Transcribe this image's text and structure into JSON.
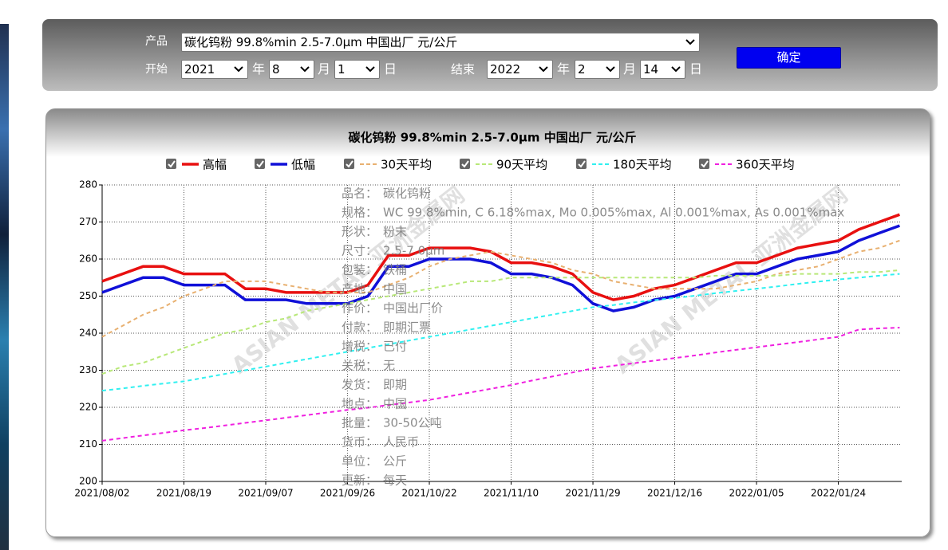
{
  "form": {
    "product_label": "产品",
    "product_value": "碳化钨粉 99.8%min 2.5-7.0μm 中国出厂 元/公斤",
    "start_label": "开始",
    "start_year": "2021",
    "start_month": "8",
    "start_day": "1",
    "end_label": "结束",
    "end_year": "2022",
    "end_month": "2",
    "end_day": "14",
    "year_unit": "年",
    "month_unit": "月",
    "day_unit": "日",
    "submit": "确定"
  },
  "chart_data": {
    "type": "line",
    "title": "碳化钨粉 99.8%min 2.5-7.0μm 中国出厂 元/公斤",
    "categories": [
      "2021/08/02",
      null,
      null,
      null,
      "2021/08/19",
      null,
      null,
      null,
      "2021/09/07",
      null,
      null,
      null,
      "2021/09/26",
      null,
      null,
      null,
      "2021/10/22",
      null,
      null,
      null,
      "2021/11/10",
      null,
      null,
      null,
      "2021/11/29",
      null,
      null,
      null,
      "2021/12/16",
      null,
      null,
      null,
      "2022/01/05",
      null,
      null,
      null,
      "2022/01/24",
      null,
      null,
      null
    ],
    "ylim": [
      200,
      280
    ],
    "yticks": [
      200,
      210,
      220,
      230,
      240,
      250,
      260,
      270,
      280
    ],
    "grid": true,
    "series": [
      {
        "name": "高幅",
        "color": "#e81010",
        "style": "solid",
        "values": [
          254,
          256,
          258,
          258,
          256,
          256,
          256,
          252,
          252,
          251,
          251,
          251,
          251,
          253,
          261,
          261,
          263,
          263,
          263,
          262,
          259,
          259,
          258,
          256,
          251,
          249,
          250,
          252,
          253,
          255,
          257,
          259,
          259,
          261,
          263,
          264,
          265,
          268,
          270,
          272
        ]
      },
      {
        "name": "低幅",
        "color": "#1010d8",
        "style": "solid",
        "values": [
          251,
          253,
          255,
          255,
          253,
          253,
          253,
          249,
          249,
          249,
          248,
          248,
          248,
          250,
          258,
          258,
          260,
          260,
          260,
          259,
          256,
          256,
          255,
          253,
          248,
          246,
          247,
          249,
          250,
          252,
          254,
          256,
          256,
          258,
          260,
          261,
          262,
          265,
          267,
          269
        ]
      },
      {
        "name": "30天平均",
        "color": "#e8b070",
        "style": "dashed",
        "values": [
          239,
          242,
          245,
          247,
          250,
          252,
          254,
          254,
          254,
          253,
          252,
          251,
          251,
          251,
          253,
          255,
          258,
          260,
          261,
          262,
          261,
          260,
          259,
          257,
          256,
          254,
          253,
          252,
          252,
          252,
          252,
          253,
          254,
          256,
          257,
          258,
          260,
          262,
          263,
          265
        ]
      },
      {
        "name": "90天平均",
        "color": "#b8e878",
        "style": "dashed",
        "values": [
          229,
          231,
          232,
          234,
          236,
          238,
          240,
          241,
          243,
          244,
          246,
          247,
          248,
          249,
          250,
          251,
          252,
          253,
          254,
          254,
          255,
          255,
          255,
          255,
          255,
          255,
          255,
          255,
          255,
          255,
          255.5,
          255.5,
          255.5,
          255.5,
          256,
          256,
          256,
          256.5,
          256.5,
          257
        ]
      },
      {
        "name": "180天平均",
        "color": "#30f0f0",
        "style": "dashed",
        "values": [
          224.5,
          225.1,
          225.8,
          226.4,
          227,
          228,
          229,
          230,
          231,
          232,
          233,
          234,
          235,
          236,
          237,
          238,
          239,
          240,
          241,
          242,
          243,
          244,
          245,
          246,
          247,
          247.6,
          248.3,
          248.9,
          249.5,
          250.1,
          250.8,
          251.4,
          252,
          252.6,
          253.3,
          253.9,
          254.5,
          255,
          255.5,
          256
        ]
      },
      {
        "name": "360天平均",
        "color": "#f020e0",
        "style": "dashed",
        "values": [
          211,
          211.7,
          212.4,
          213.1,
          213.8,
          214.4,
          215.1,
          215.8,
          216.5,
          217.2,
          217.9,
          218.6,
          219.3,
          219.9,
          220.6,
          221.3,
          222,
          223,
          224,
          225,
          226,
          227.2,
          228.3,
          229.4,
          230.5,
          231.2,
          231.9,
          232.6,
          233.3,
          234,
          234.8,
          235.5,
          236.2,
          236.9,
          237.6,
          238.3,
          239,
          241,
          241.3,
          241.5
        ]
      }
    ],
    "watermark": "ASIAN METAL 亚洲金属网",
    "info": [
      {
        "label": "品名：",
        "value": "碳化钨粉"
      },
      {
        "label": "规格：",
        "value": "WC 99.8%min, C 6.18%max, Mo 0.005%max, Al 0.001%max, As 0.001%max"
      },
      {
        "label": "形状：",
        "value": "粉末"
      },
      {
        "label": "尺寸：",
        "value": "2.5-7.0μm"
      },
      {
        "label": "包装：",
        "value": "铁桶"
      },
      {
        "label": "产地：",
        "value": "中国"
      },
      {
        "label": "作价：",
        "value": "中国出厂价"
      },
      {
        "label": "付款：",
        "value": "即期汇票"
      },
      {
        "label": "增税：",
        "value": "已付"
      },
      {
        "label": "关税：",
        "value": "无"
      },
      {
        "label": "发货：",
        "value": "即期"
      },
      {
        "label": "地点：",
        "value": "中国"
      },
      {
        "label": "批量：",
        "value": "30-50公吨"
      },
      {
        "label": "货币：",
        "value": "人民币"
      },
      {
        "label": "单位：",
        "value": "公斤"
      },
      {
        "label": "更新：",
        "value": "每天"
      }
    ]
  }
}
